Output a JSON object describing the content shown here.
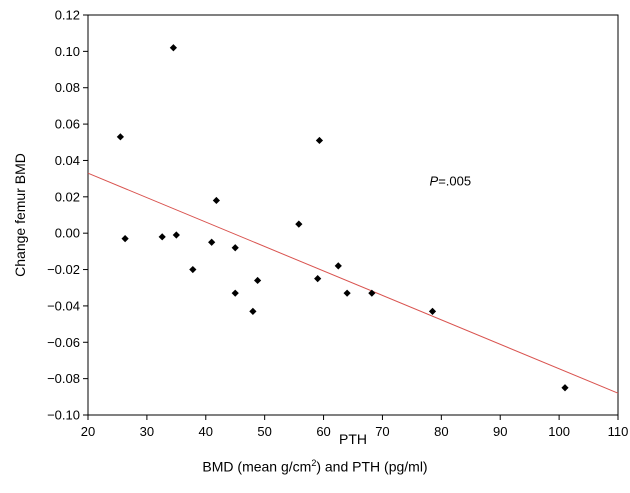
{
  "chart_data": {
    "type": "scatter",
    "xlabel": "PTH",
    "ylabel": "Change femur BMD",
    "xlim": [
      20,
      110
    ],
    "ylim": [
      -0.1,
      0.12
    ],
    "x_ticks": [
      20,
      30,
      40,
      50,
      60,
      70,
      80,
      90,
      100,
      110
    ],
    "y_ticks": [
      -0.1,
      -0.08,
      -0.06,
      -0.04,
      -0.02,
      0.0,
      0.02,
      0.04,
      0.06,
      0.08,
      0.1,
      0.12
    ],
    "x_tick_labels": [
      "20",
      "30",
      "40",
      "50",
      "60",
      "70",
      "80",
      "90",
      "100",
      "110"
    ],
    "y_tick_labels": [
      "−0.10",
      "−0.08",
      "−0.06",
      "−0.04",
      "−0.02",
      "0.00",
      "0.02",
      "0.04",
      "0.06",
      "0.08",
      "0.10",
      "0.12"
    ],
    "points": [
      {
        "x": 25.5,
        "y": 0.053
      },
      {
        "x": 26.3,
        "y": -0.003
      },
      {
        "x": 32.6,
        "y": -0.002
      },
      {
        "x": 34.5,
        "y": 0.102
      },
      {
        "x": 35.0,
        "y": -0.001
      },
      {
        "x": 37.8,
        "y": -0.02
      },
      {
        "x": 41.0,
        "y": -0.005
      },
      {
        "x": 41.8,
        "y": 0.018
      },
      {
        "x": 45.0,
        "y": -0.008
      },
      {
        "x": 45.0,
        "y": -0.033
      },
      {
        "x": 48.0,
        "y": -0.043
      },
      {
        "x": 48.8,
        "y": -0.026
      },
      {
        "x": 55.8,
        "y": 0.005
      },
      {
        "x": 59.0,
        "y": -0.025
      },
      {
        "x": 59.3,
        "y": 0.051
      },
      {
        "x": 62.5,
        "y": -0.018
      },
      {
        "x": 64.0,
        "y": -0.033
      },
      {
        "x": 68.2,
        "y": -0.033
      },
      {
        "x": 78.5,
        "y": -0.043
      },
      {
        "x": 101.0,
        "y": -0.085
      }
    ],
    "regression_line": {
      "x": [
        20,
        110
      ],
      "y": [
        0.033,
        -0.088
      ],
      "color": "#d9534f"
    },
    "annotation": {
      "italic_part": "P",
      "rest": "=.005",
      "x": 78,
      "y": 0.029
    },
    "grid": false,
    "marker_color": "#000000"
  },
  "caption": {
    "prefix": "BMD (mean g/cm",
    "superscript": "2",
    "suffix": ") and PTH (pg/ml)"
  }
}
